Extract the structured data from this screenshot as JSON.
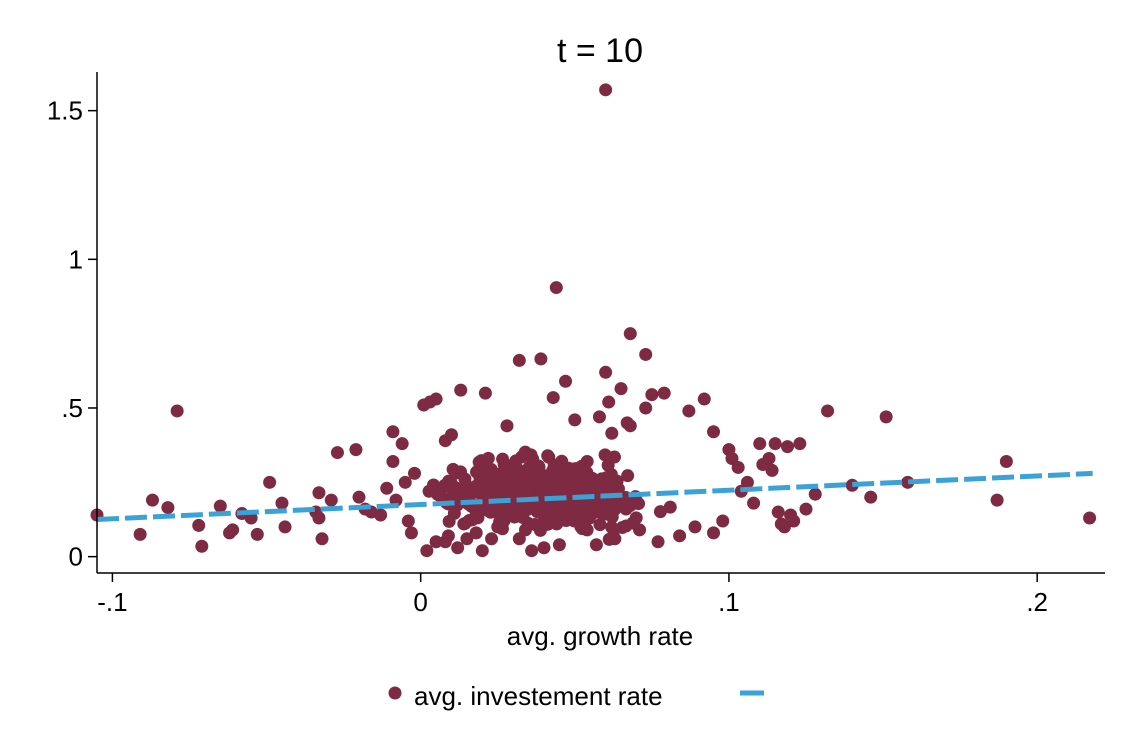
{
  "chart_data": {
    "type": "scatter",
    "title": "t = 10",
    "xlabel": "avg. growth rate",
    "ylabel": "",
    "xlim": [
      -0.105,
      0.222
    ],
    "ylim": [
      -0.055,
      1.63
    ],
    "xticks": [
      -0.1,
      0,
      0.1,
      0.2
    ],
    "xtick_labels": [
      "-.1",
      "0",
      ".1",
      ".2"
    ],
    "yticks": [
      0,
      0.5,
      1,
      1.5
    ],
    "ytick_labels": [
      "0",
      ".5",
      "1",
      "1.5"
    ],
    "grid": false,
    "legend_position": "bottom",
    "colors": {
      "points": "#7e2a43",
      "fit": "#3aa2d6"
    },
    "series": [
      {
        "name": "avg. investement rate",
        "kind": "points",
        "x": [
          0.06,
          0.044,
          0.068,
          0.073,
          0.032,
          0.039,
          0.06,
          0.047,
          0.013,
          0.065,
          0.021,
          0.079,
          0.075,
          0.092,
          0.043,
          0.061,
          0.073,
          0.067,
          0.028,
          0.058,
          0.05,
          0.087,
          0.062,
          0.068,
          0.003,
          0.001,
          0.005,
          0.095,
          -0.079,
          0.132,
          0.151,
          0.19,
          -0.105,
          -0.091,
          -0.087,
          -0.082,
          -0.072,
          -0.071,
          -0.065,
          -0.062,
          -0.061,
          -0.058,
          -0.055,
          -0.053,
          -0.049,
          -0.045,
          -0.044,
          -0.034,
          -0.033,
          -0.033,
          -0.032,
          -0.029,
          -0.027,
          -0.021,
          -0.02,
          -0.018,
          -0.016,
          -0.013,
          -0.011,
          -0.009,
          -0.009,
          -0.008,
          -0.006,
          -0.005,
          -0.004,
          -0.003,
          -0.002,
          0.008,
          0.01,
          0.1,
          0.101,
          0.103,
          0.104,
          0.106,
          0.108,
          0.11,
          0.111,
          0.113,
          0.114,
          0.115,
          0.116,
          0.117,
          0.118,
          0.119,
          0.12,
          0.121,
          0.123,
          0.125,
          0.128,
          0.14,
          0.146,
          0.158,
          0.187,
          0.217,
          0.045,
          0.032,
          0.02,
          0.012,
          0.008,
          0.04,
          0.052,
          0.036,
          0.015,
          0.005,
          0.002,
          0.018,
          0.027,
          0.057,
          0.063,
          0.071,
          0.077,
          0.084,
          0.089,
          0.095,
          0.098,
          0.03,
          0.025,
          0.009,
          0.014,
          0.054,
          0.048,
          0.023,
          0.034
        ],
        "y": [
          1.57,
          0.905,
          0.75,
          0.68,
          0.66,
          0.665,
          0.62,
          0.59,
          0.56,
          0.565,
          0.55,
          0.55,
          0.545,
          0.53,
          0.535,
          0.52,
          0.5,
          0.45,
          0.44,
          0.47,
          0.46,
          0.49,
          0.415,
          0.44,
          0.52,
          0.51,
          0.53,
          0.42,
          0.49,
          0.49,
          0.47,
          0.32,
          0.14,
          0.075,
          0.19,
          0.165,
          0.105,
          0.035,
          0.17,
          0.08,
          0.09,
          0.145,
          0.13,
          0.075,
          0.25,
          0.18,
          0.1,
          0.15,
          0.215,
          0.13,
          0.06,
          0.19,
          0.35,
          0.36,
          0.2,
          0.16,
          0.15,
          0.14,
          0.23,
          0.42,
          0.32,
          0.19,
          0.38,
          0.25,
          0.12,
          0.08,
          0.28,
          0.39,
          0.41,
          0.36,
          0.33,
          0.3,
          0.22,
          0.25,
          0.18,
          0.38,
          0.31,
          0.33,
          0.29,
          0.38,
          0.15,
          0.11,
          0.1,
          0.37,
          0.14,
          0.12,
          0.38,
          0.16,
          0.21,
          0.24,
          0.2,
          0.25,
          0.19,
          0.13,
          0.04,
          0.06,
          0.02,
          0.03,
          0.05,
          0.03,
          0.1,
          0.02,
          0.06,
          0.05,
          0.02,
          0.08,
          0.12,
          0.04,
          0.06,
          0.09,
          0.05,
          0.07,
          0.1,
          0.08,
          0.12,
          0.15,
          0.1,
          0.07,
          0.11,
          0.09,
          0.13,
          0.06,
          0.09
        ]
      },
      {
        "name": "",
        "kind": "fit",
        "line_style": "dashed",
        "x": [
          -0.105,
          0.218
        ],
        "y": [
          0.125,
          0.28
        ]
      }
    ]
  }
}
